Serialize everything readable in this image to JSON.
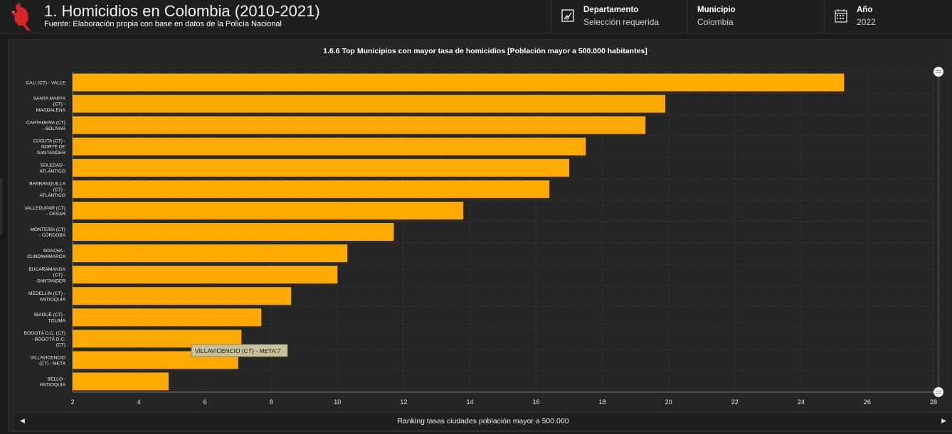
{
  "header": {
    "title": "1. Homicidios en Colombia (2010-2021)",
    "subtitle": "Fuente: Elaboración propia con base en datos de la Policía Nacional"
  },
  "filters": {
    "departamento": {
      "label": "Departamento",
      "value": "Selección requerida",
      "icon": "map-icon"
    },
    "municipio": {
      "label": "Municipio",
      "value": "Colombia"
    },
    "ano": {
      "label": "Año",
      "value": "2022",
      "icon": "calendar-icon"
    }
  },
  "footer": {
    "caption": "Ranking tasas ciudades población mayor a 500.000"
  },
  "tooltip": {
    "text": "VILLAVICENCIO (CT) - META:7"
  },
  "colors": {
    "bar": "#ffaa00",
    "background": "#252525",
    "grid": "#3f3f3f",
    "tooltip_bg": "#c9c09a"
  },
  "chart_data": {
    "type": "bar",
    "orientation": "horizontal",
    "title": "1.6.6 Top Municipios con mayor tasa de homicidios [Población mayor a 500.000 habitantes]",
    "xlim": [
      2,
      28
    ],
    "xticks": [
      2,
      4,
      6,
      8,
      10,
      12,
      14,
      16,
      18,
      20,
      22,
      24,
      26,
      28
    ],
    "grid": true,
    "categories": [
      [
        "CALI (CT) - VALLE"
      ],
      [
        "SANTA MARTA",
        "(CT) -",
        "MAGDALENA"
      ],
      [
        "CARTAGENA (CT)",
        "- BOLÍVAR"
      ],
      [
        "CÚCUTA (CT) -",
        "NORTE DE",
        "SANTANDER"
      ],
      [
        "SOLEDAD -",
        "ATLÁNTICO"
      ],
      [
        "BARRANQUILLA",
        "(CT) -",
        "ATLÁNTICO"
      ],
      [
        "VALLEDUPAR (CT)",
        "- CESAR"
      ],
      [
        "MONTERÍA (CT)",
        "- CÓRDOBA"
      ],
      [
        "SOACHA -",
        "CUNDINAMARCA"
      ],
      [
        "BUCARAMANGA",
        "(CT) -",
        "SANTANDER"
      ],
      [
        "MEDELLÍN (CT) -",
        "ANTIOQUIA"
      ],
      [
        "IBAGUÉ (CT) -",
        "TOLIMA"
      ],
      [
        "BOGOTÁ D.C. (CT)",
        "- BOGOTÁ D.C.",
        "(CT)"
      ],
      [
        "VILLAVICENCIO",
        "(CT) - META"
      ],
      [
        "BELLO -",
        "ANTIOQUIA"
      ]
    ],
    "values": [
      25.3,
      19.9,
      19.3,
      17.5,
      17.0,
      16.4,
      13.8,
      11.7,
      10.3,
      10.0,
      8.6,
      7.7,
      7.1,
      7,
      4.9
    ]
  }
}
